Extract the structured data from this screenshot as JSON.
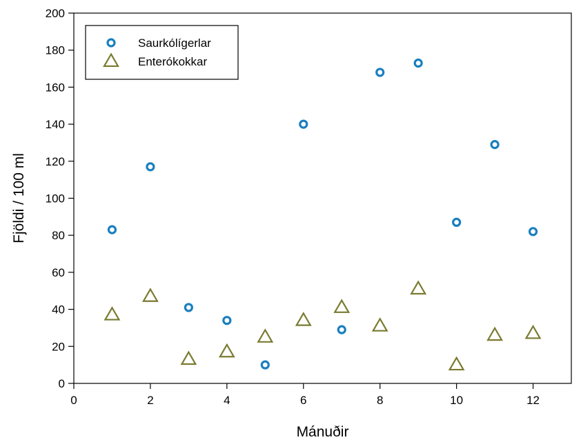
{
  "chart_data": {
    "type": "scatter",
    "title": "",
    "xlabel": "Mánuðir",
    "ylabel": "Fjöldi / 100 ml",
    "xlim": [
      0,
      13
    ],
    "ylim": [
      0,
      200
    ],
    "xticks": [
      0,
      2,
      4,
      6,
      8,
      10,
      12
    ],
    "yticks": [
      0,
      20,
      40,
      60,
      80,
      100,
      120,
      140,
      160,
      180,
      200
    ],
    "grid": false,
    "legend_position": "top-left",
    "series": [
      {
        "name": "Saurkólígerlar",
        "marker": "circle",
        "color": "#1a7fbf",
        "x": [
          1,
          2,
          3,
          4,
          5,
          6,
          7,
          8,
          9,
          10,
          11,
          12
        ],
        "y": [
          83,
          117,
          41,
          34,
          10,
          140,
          29,
          168,
          173,
          87,
          129,
          82
        ]
      },
      {
        "name": "Enterókokkar",
        "marker": "triangle",
        "color": "#7a7a30",
        "x": [
          1,
          2,
          3,
          4,
          5,
          6,
          7,
          8,
          9,
          10,
          11,
          12
        ],
        "y": [
          37,
          47,
          13,
          17,
          25,
          34,
          41,
          31,
          51,
          10,
          26,
          27
        ]
      }
    ]
  }
}
